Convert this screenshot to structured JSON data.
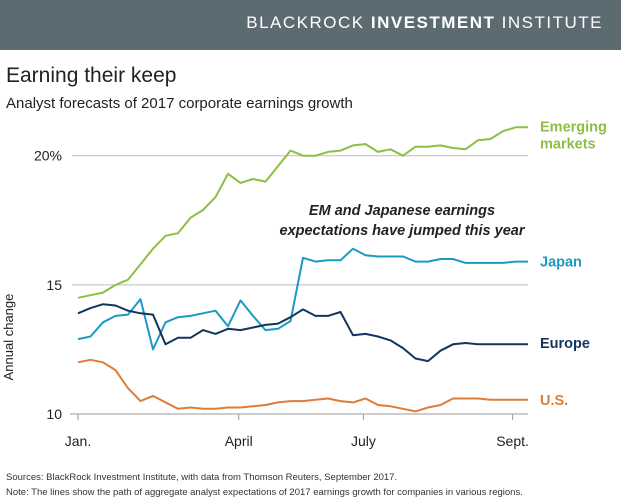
{
  "header": {
    "brand_light": "BLACKROCK",
    "brand_bold": "INVESTMENT",
    "brand_tail": "INSTITUTE",
    "banner_color": "#5c6b72"
  },
  "footer": {
    "sources": "Sources: BlackRock Investment Institute, with data from Thomson Reuters, September 2017.",
    "note": "Note: The lines show the path of aggregate analyst expectations of 2017 earnings growth for companies in various regions."
  },
  "chart_data": {
    "type": "line",
    "title": "Earning their keep",
    "subtitle": "Analyst forecasts of 2017 corporate earnings growth",
    "ylabel": "Annual change",
    "xlabel": "",
    "ylim": [
      10,
      21.5
    ],
    "xlim": [
      0,
      35
    ],
    "grid": "horizontal",
    "y_ticks": [
      {
        "value": 10,
        "label": "10"
      },
      {
        "value": 15,
        "label": "15"
      },
      {
        "value": 20,
        "label": "20%"
      }
    ],
    "x_ticks": [
      {
        "value": 0,
        "label": "Jan."
      },
      {
        "value": 12.5,
        "label": "April"
      },
      {
        "value": 22.2,
        "label": "July"
      },
      {
        "value": 33.8,
        "label": "Sept."
      }
    ],
    "annotation": {
      "lines": [
        "EM and Japanese earnings",
        "expectations have jumped this year"
      ],
      "x": 25.2,
      "y": 17.7
    },
    "series": [
      {
        "name": "Emerging markets",
        "label_lines": [
          "Emerging",
          "markets"
        ],
        "label_y": 20.8,
        "color": "#8cbf45",
        "values": [
          14.5,
          14.6,
          14.7,
          15.0,
          15.2,
          15.8,
          16.4,
          16.9,
          17.0,
          17.6,
          17.9,
          18.4,
          19.3,
          18.95,
          19.1,
          19.0,
          19.6,
          20.2,
          20.0,
          20.0,
          20.15,
          20.2,
          20.4,
          20.45,
          20.15,
          20.25,
          20.0,
          20.35,
          20.35,
          20.4,
          20.3,
          20.25,
          20.6,
          20.65,
          20.95,
          21.1,
          21.1
        ]
      },
      {
        "name": "Japan",
        "label_lines": [
          "Japan"
        ],
        "label_y": 15.9,
        "color": "#1b9ac4",
        "values": [
          12.9,
          13.0,
          13.55,
          13.8,
          13.85,
          14.45,
          12.5,
          13.55,
          13.75,
          13.8,
          13.9,
          14.0,
          13.4,
          14.4,
          13.8,
          13.25,
          13.3,
          13.6,
          16.05,
          15.9,
          15.95,
          15.95,
          16.4,
          16.15,
          16.1,
          16.1,
          16.1,
          15.9,
          15.9,
          16.0,
          16.0,
          15.85,
          15.85,
          15.85,
          15.85,
          15.9,
          15.9
        ]
      },
      {
        "name": "Europe",
        "label_lines": [
          "Europe"
        ],
        "label_y": 12.75,
        "color": "#11355e",
        "values": [
          13.9,
          14.1,
          14.25,
          14.2,
          14.0,
          13.9,
          13.85,
          12.7,
          12.95,
          12.95,
          13.25,
          13.1,
          13.3,
          13.25,
          13.35,
          13.45,
          13.5,
          13.75,
          14.05,
          13.8,
          13.8,
          13.95,
          13.05,
          13.1,
          13.0,
          12.85,
          12.55,
          12.15,
          12.05,
          12.45,
          12.7,
          12.75,
          12.7,
          12.7,
          12.7,
          12.7,
          12.7
        ]
      },
      {
        "name": "U.S.",
        "label_lines": [
          "U.S."
        ],
        "label_y": 10.55,
        "color": "#e07b39",
        "values": [
          12.0,
          12.1,
          12.0,
          11.7,
          11.0,
          10.5,
          10.7,
          10.45,
          10.2,
          10.25,
          10.2,
          10.2,
          10.25,
          10.25,
          10.3,
          10.35,
          10.45,
          10.5,
          10.5,
          10.55,
          10.6,
          10.5,
          10.45,
          10.6,
          10.35,
          10.3,
          10.2,
          10.1,
          10.25,
          10.35,
          10.6,
          10.6,
          10.6,
          10.55,
          10.55,
          10.55,
          10.55
        ]
      }
    ]
  }
}
